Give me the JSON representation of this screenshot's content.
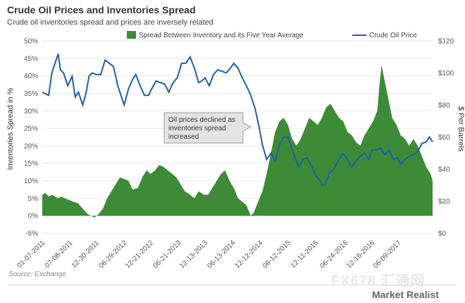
{
  "title": "Crude Oil Prices and Inventories Spread",
  "subtitle": "Crude oil inventories spread and prices are inversely related",
  "source": "Source: Exchange",
  "brand": "Market Realist",
  "watermark": "FX678",
  "watermark_cn": "汇通网",
  "colors": {
    "area": "#3d8b37",
    "line": "#1f5fa8",
    "grid": "#e6e6e6",
    "callout_bg": "#e4e4e4",
    "callout_border": "#9a9a9a"
  },
  "chart_data": {
    "type": "area+line",
    "left_axis": {
      "label": "Inventories Spread in %",
      "range": [
        -0.05,
        0.5
      ],
      "ticks": [
        -0.05,
        0,
        0.05,
        0.1,
        0.15,
        0.2,
        0.25,
        0.3,
        0.35,
        0.4,
        0.45,
        0.5
      ],
      "tick_labels": [
        "-5%",
        "0%",
        "5%",
        "10%",
        "15%",
        "20%",
        "25%",
        "30%",
        "35%",
        "40%",
        "45%",
        "50%"
      ]
    },
    "right_axis": {
      "label": "$ Per Barrels",
      "range": [
        0,
        120
      ],
      "ticks": [
        0,
        20,
        40,
        60,
        80,
        100,
        120
      ],
      "tick_labels": [
        "$0",
        "$20",
        "$40",
        "$60",
        "$80",
        "$100",
        "$120"
      ]
    },
    "x_axis": {
      "range": [
        "2011-01-07",
        "2018-01-19"
      ],
      "ticks": [
        "2011-01-07",
        "2011-07-08",
        "2011-12-30",
        "2012-06-29",
        "2012-12-21",
        "2013-06-21",
        "2013-12-13",
        "2014-06-13",
        "2014-12-12",
        "2015-06-12",
        "2015-12-11",
        "2016-06-24",
        "2016-12-16",
        "2017-06-09"
      ],
      "tick_labels": [
        "01-07-2011",
        "07-08-2011",
        "12-30-2011",
        "06-29-2012",
        "12-21-2012",
        "06-21-2013",
        "12-13-2013",
        "06-13-2014",
        "12-12-2014",
        "06-12-2015",
        "12-11-2015",
        "06-24-2016",
        "12-16-2016",
        "06-09-2017"
      ]
    },
    "grid": true,
    "legend_position": "top",
    "series": [
      {
        "name": "Spread Between Inventory and its Five Year Average",
        "kind": "area",
        "axis": "left",
        "points": [
          [
            "2011-01-07",
            0.06
          ],
          [
            "2011-01-28",
            0.065
          ],
          [
            "2011-02-18",
            0.055
          ],
          [
            "2011-03-11",
            0.06
          ],
          [
            "2011-04-01",
            0.055
          ],
          [
            "2011-04-22",
            0.05
          ],
          [
            "2011-05-13",
            0.055
          ],
          [
            "2011-06-03",
            0.05
          ],
          [
            "2011-07-01",
            0.045
          ],
          [
            "2011-08-01",
            0.04
          ],
          [
            "2011-09-01",
            0.035
          ],
          [
            "2011-10-01",
            0.02
          ],
          [
            "2011-11-01",
            0.005
          ],
          [
            "2011-11-25",
            0.0
          ],
          [
            "2011-12-16",
            -0.005
          ],
          [
            "2012-01-13",
            0.005
          ],
          [
            "2012-02-10",
            0.02
          ],
          [
            "2012-03-09",
            0.05
          ],
          [
            "2012-04-06",
            0.07
          ],
          [
            "2012-05-04",
            0.09
          ],
          [
            "2012-06-01",
            0.11
          ],
          [
            "2012-06-29",
            0.105
          ],
          [
            "2012-07-27",
            0.1
          ],
          [
            "2012-08-24",
            0.075
          ],
          [
            "2012-09-28",
            0.08
          ],
          [
            "2012-10-26",
            0.11
          ],
          [
            "2012-11-23",
            0.13
          ],
          [
            "2012-12-21",
            0.12
          ],
          [
            "2013-01-18",
            0.13
          ],
          [
            "2013-02-15",
            0.145
          ],
          [
            "2013-03-15",
            0.14
          ],
          [
            "2013-04-12",
            0.13
          ],
          [
            "2013-05-10",
            0.12
          ],
          [
            "2013-06-07",
            0.11
          ],
          [
            "2013-07-05",
            0.09
          ],
          [
            "2013-08-02",
            0.07
          ],
          [
            "2013-09-06",
            0.06
          ],
          [
            "2013-10-04",
            0.05
          ],
          [
            "2013-11-01",
            0.07
          ],
          [
            "2013-12-06",
            0.06
          ],
          [
            "2014-01-03",
            0.06
          ],
          [
            "2014-01-31",
            0.08
          ],
          [
            "2014-02-28",
            0.1
          ],
          [
            "2014-03-28",
            0.12
          ],
          [
            "2014-04-25",
            0.13
          ],
          [
            "2014-05-23",
            0.1
          ],
          [
            "2014-06-20",
            0.08
          ],
          [
            "2014-07-18",
            0.05
          ],
          [
            "2014-08-15",
            0.04
          ],
          [
            "2014-09-12",
            0.03
          ],
          [
            "2014-10-10",
            0.0
          ],
          [
            "2014-10-31",
            0.01
          ],
          [
            "2014-11-28",
            0.04
          ],
          [
            "2014-12-26",
            0.07
          ],
          [
            "2015-01-23",
            0.12
          ],
          [
            "2015-02-20",
            0.18
          ],
          [
            "2015-03-20",
            0.24
          ],
          [
            "2015-04-17",
            0.27
          ],
          [
            "2015-05-15",
            0.28
          ],
          [
            "2015-06-12",
            0.26
          ],
          [
            "2015-07-10",
            0.22
          ],
          [
            "2015-08-07",
            0.2
          ],
          [
            "2015-09-04",
            0.22
          ],
          [
            "2015-10-02",
            0.25
          ],
          [
            "2015-10-30",
            0.28
          ],
          [
            "2015-11-27",
            0.27
          ],
          [
            "2015-12-25",
            0.26
          ],
          [
            "2016-01-22",
            0.28
          ],
          [
            "2016-02-19",
            0.31
          ],
          [
            "2016-03-18",
            0.32
          ],
          [
            "2016-04-15",
            0.3
          ],
          [
            "2016-05-13",
            0.28
          ],
          [
            "2016-06-10",
            0.27
          ],
          [
            "2016-07-08",
            0.24
          ],
          [
            "2016-08-05",
            0.23
          ],
          [
            "2016-09-02",
            0.21
          ],
          [
            "2016-09-30",
            0.2
          ],
          [
            "2016-10-28",
            0.23
          ],
          [
            "2016-11-25",
            0.25
          ],
          [
            "2016-12-23",
            0.27
          ],
          [
            "2017-01-20",
            0.3
          ],
          [
            "2017-02-03",
            0.37
          ],
          [
            "2017-02-17",
            0.43
          ],
          [
            "2017-03-03",
            0.4
          ],
          [
            "2017-03-31",
            0.34
          ],
          [
            "2017-04-28",
            0.28
          ],
          [
            "2017-05-26",
            0.26
          ],
          [
            "2017-06-23",
            0.23
          ],
          [
            "2017-07-21",
            0.22
          ],
          [
            "2017-08-18",
            0.2
          ],
          [
            "2017-09-15",
            0.22
          ],
          [
            "2017-10-13",
            0.2
          ],
          [
            "2017-11-10",
            0.17
          ],
          [
            "2017-12-08",
            0.14
          ],
          [
            "2018-01-05",
            0.12
          ],
          [
            "2018-01-19",
            0.1
          ]
        ]
      },
      {
        "name": "Crude Oil Price",
        "kind": "line",
        "axis": "right",
        "points": [
          [
            "2011-01-07",
            88
          ],
          [
            "2011-01-28",
            87
          ],
          [
            "2011-02-18",
            86
          ],
          [
            "2011-03-11",
            100
          ],
          [
            "2011-04-01",
            106
          ],
          [
            "2011-04-22",
            112
          ],
          [
            "2011-05-06",
            102
          ],
          [
            "2011-05-27",
            100
          ],
          [
            "2011-06-24",
            92
          ],
          [
            "2011-07-22",
            98
          ],
          [
            "2011-08-12",
            85
          ],
          [
            "2011-09-02",
            88
          ],
          [
            "2011-09-30",
            80
          ],
          [
            "2011-10-21",
            87
          ],
          [
            "2011-11-11",
            98
          ],
          [
            "2011-12-02",
            100
          ],
          [
            "2011-12-30",
            99
          ],
          [
            "2012-01-27",
            99
          ],
          [
            "2012-02-24",
            108
          ],
          [
            "2012-03-23",
            106
          ],
          [
            "2012-04-20",
            104
          ],
          [
            "2012-05-18",
            92
          ],
          [
            "2012-06-15",
            84
          ],
          [
            "2012-06-29",
            80
          ],
          [
            "2012-07-27",
            90
          ],
          [
            "2012-08-24",
            96
          ],
          [
            "2012-09-14",
            99
          ],
          [
            "2012-10-12",
            92
          ],
          [
            "2012-11-09",
            86
          ],
          [
            "2012-12-07",
            86
          ],
          [
            "2012-12-21",
            89
          ],
          [
            "2013-01-25",
            95
          ],
          [
            "2013-02-22",
            94
          ],
          [
            "2013-03-22",
            93
          ],
          [
            "2013-04-19",
            88
          ],
          [
            "2013-05-17",
            94
          ],
          [
            "2013-06-14",
            97
          ],
          [
            "2013-07-12",
            106
          ],
          [
            "2013-08-09",
            106
          ],
          [
            "2013-09-06",
            110
          ],
          [
            "2013-10-04",
            103
          ],
          [
            "2013-11-01",
            94
          ],
          [
            "2013-11-22",
            95
          ],
          [
            "2013-12-13",
            97
          ],
          [
            "2014-01-10",
            92
          ],
          [
            "2014-02-07",
            99
          ],
          [
            "2014-03-07",
            102
          ],
          [
            "2014-04-04",
            101
          ],
          [
            "2014-05-02",
            100
          ],
          [
            "2014-05-30",
            103
          ],
          [
            "2014-06-20",
            106
          ],
          [
            "2014-07-18",
            103
          ],
          [
            "2014-08-15",
            97
          ],
          [
            "2014-09-12",
            92
          ],
          [
            "2014-10-10",
            86
          ],
          [
            "2014-11-07",
            78
          ],
          [
            "2014-12-05",
            66
          ],
          [
            "2014-12-26",
            55
          ],
          [
            "2015-01-23",
            46
          ],
          [
            "2015-02-20",
            50
          ],
          [
            "2015-03-20",
            45
          ],
          [
            "2015-04-17",
            55
          ],
          [
            "2015-05-15",
            60
          ],
          [
            "2015-06-12",
            60
          ],
          [
            "2015-07-10",
            52
          ],
          [
            "2015-08-07",
            45
          ],
          [
            "2015-08-21",
            41
          ],
          [
            "2015-09-18",
            46
          ],
          [
            "2015-10-16",
            47
          ],
          [
            "2015-11-13",
            42
          ],
          [
            "2015-12-11",
            36
          ],
          [
            "2016-01-08",
            33
          ],
          [
            "2016-01-22",
            30
          ],
          [
            "2016-02-12",
            30
          ],
          [
            "2016-03-11",
            38
          ],
          [
            "2016-04-08",
            40
          ],
          [
            "2016-05-06",
            45
          ],
          [
            "2016-06-10",
            50
          ],
          [
            "2016-07-08",
            46
          ],
          [
            "2016-08-05",
            41
          ],
          [
            "2016-09-02",
            45
          ],
          [
            "2016-09-30",
            48
          ],
          [
            "2016-10-28",
            50
          ],
          [
            "2016-11-25",
            46
          ],
          [
            "2016-12-16",
            52
          ],
          [
            "2017-01-13",
            52
          ],
          [
            "2017-02-10",
            53
          ],
          [
            "2017-03-10",
            49
          ],
          [
            "2017-04-07",
            52
          ],
          [
            "2017-05-05",
            46
          ],
          [
            "2017-06-02",
            47
          ],
          [
            "2017-06-23",
            43
          ],
          [
            "2017-07-21",
            46
          ],
          [
            "2017-08-18",
            48
          ],
          [
            "2017-09-15",
            49
          ],
          [
            "2017-10-13",
            51
          ],
          [
            "2017-11-10",
            56
          ],
          [
            "2017-12-08",
            57
          ],
          [
            "2017-12-29",
            60
          ],
          [
            "2018-01-19",
            57
          ]
        ]
      }
    ],
    "annotation": {
      "text_lines": [
        "Oil prices declined as",
        "inventories spread",
        "increased"
      ],
      "points_to": [
        "2014-12-12",
        0.2
      ]
    }
  }
}
